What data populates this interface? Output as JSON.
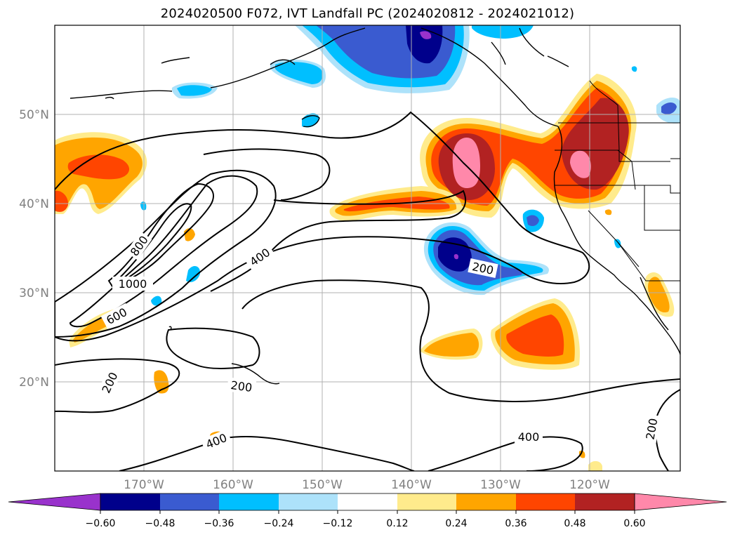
{
  "title": "2024020500 F072, IVT Landfall PC (2024020812 - 2024021012)",
  "map": {
    "lat_labels": [
      "50°N",
      "40°N",
      "30°N",
      "20°N"
    ],
    "lon_labels": [
      "170°W",
      "160°W",
      "150°W",
      "140°W",
      "130°W",
      "120°W"
    ],
    "contour_labels": [
      "800",
      "1000",
      "600",
      "400",
      "200",
      "200",
      "200",
      "400",
      "400",
      "200"
    ]
  },
  "colorbar": {
    "ticks": [
      "−0.60",
      "−0.48",
      "−0.36",
      "−0.24",
      "−0.12",
      "0.12",
      "0.24",
      "0.36",
      "0.48",
      "0.60"
    ],
    "colors": [
      "#9932CC",
      "#00008B",
      "#3A5BD0",
      "#00BFFF",
      "#ADE2FA",
      "#FFFFFF",
      "#FFEB8C",
      "#FFA500",
      "#FF4500",
      "#B22222",
      "#FF88AA"
    ]
  },
  "colors": {
    "pos_light": "#FFEB8C",
    "pos_orange": "#FFA500",
    "pos_red": "#FF4500",
    "pos_darkred": "#B22222",
    "pos_pink": "#FF88AA",
    "neg_light": "#ADE2FA",
    "neg_cyan": "#00BFFF",
    "neg_blue": "#3A5BD0",
    "neg_navy": "#00008B",
    "neg_purple": "#9932CC"
  }
}
